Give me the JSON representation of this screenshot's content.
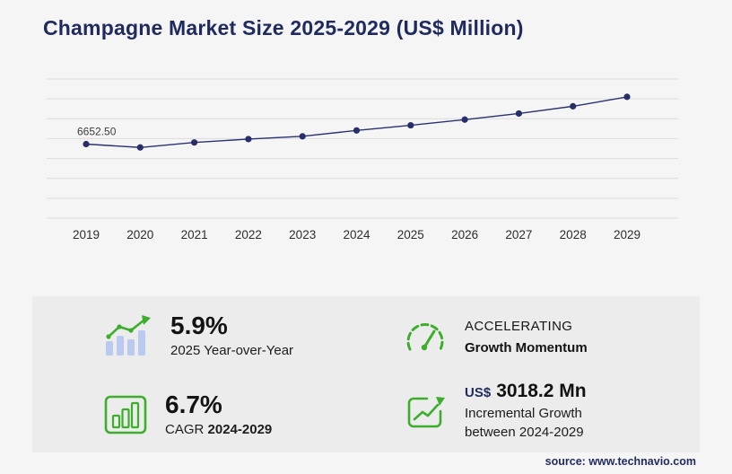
{
  "page": {
    "title": "Champagne Market Size 2025-2029 (US$ Million)",
    "source": "source: www.technavio.com"
  },
  "chart_data": {
    "type": "line",
    "title": "Champagne Market Size 2025-2029 (US$ Million)",
    "x": [
      "2019",
      "2020",
      "2021",
      "2022",
      "2023",
      "2024",
      "2025",
      "2026",
      "2027",
      "2028",
      "2029"
    ],
    "values": [
      6652.5,
      6350,
      6800,
      7100,
      7350,
      7878.5,
      8343.3,
      8850,
      9400,
      10050,
      10896.7
    ],
    "first_point_label": "6652.50",
    "xlabel": "",
    "ylabel": "",
    "ylim": [
      0,
      12500
    ],
    "gridlines": 8,
    "grid": true,
    "legend": false,
    "line_color": "#2b3270",
    "marker_color": "#272e6a",
    "grid_color": "#dcdcdc"
  },
  "stats": {
    "yoy": {
      "icon": "growth-bars-icon",
      "value": "5.9%",
      "label": "2025 Year-over-Year"
    },
    "momentum": {
      "icon": "gauge-icon",
      "line1": "ACCELERATING",
      "line2": "Growth Momentum"
    },
    "cagr": {
      "icon": "bar-chart-box-icon",
      "value": "6.7%",
      "label_prefix": "CAGR",
      "label_range": "2024-2029"
    },
    "incremental": {
      "icon": "trend-arrow-box-icon",
      "currency": "US$",
      "value": "3018.2 Mn",
      "label_line1": "Incremental Growth",
      "label_line2": "between 2024-2029"
    }
  },
  "colors": {
    "accent_green": "#3dae2b",
    "navy": "#1f2a5e",
    "bar_blue": "#b9c9f0",
    "panel_bg": "#ececec",
    "page_bg": "#f5f5f6"
  }
}
